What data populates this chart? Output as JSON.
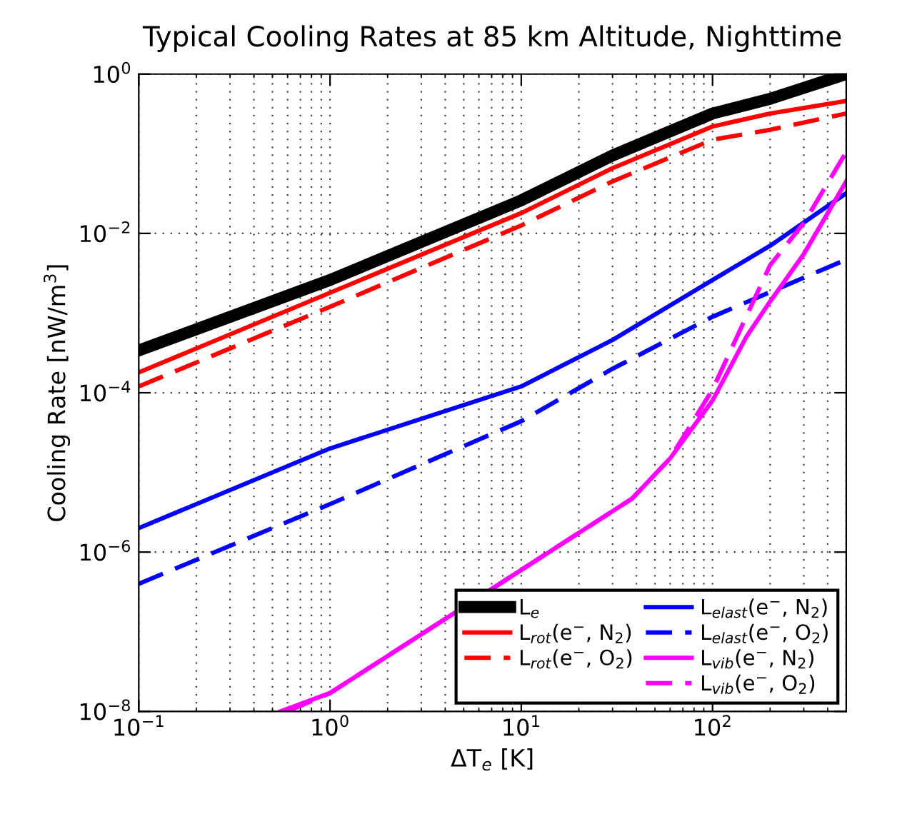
{
  "chart_data": {
    "type": "line",
    "title": "Typical Cooling Rates at 85 km Altitude, Nighttime",
    "xlabel": "ΔT$_{e}$ [K]",
    "ylabel": "Cooling Rate [nW/m$^{3}$]",
    "log": "xy",
    "grid": true,
    "legend": "bottom right",
    "xlim": [
      0.1,
      500
    ],
    "ylim": [
      1e-08,
      1
    ],
    "xticks": [
      {
        "value": 0.1,
        "label": "10$^{−1}$"
      },
      {
        "value": 1,
        "label": "10$^{0}$"
      },
      {
        "value": 10,
        "label": "10$^{1}$"
      },
      {
        "value": 100,
        "label": "10$^{2}$"
      }
    ],
    "yticks": [
      {
        "value": 1e-08,
        "label": "10$^{−8}$"
      },
      {
        "value": 1e-06,
        "label": "10$^{−6}$"
      },
      {
        "value": 0.0001,
        "label": "10$^{−4}$"
      },
      {
        "value": 0.01,
        "label": "10$^{−2}$"
      },
      {
        "value": 1,
        "label": "10$^{0}$"
      }
    ],
    "series": [
      {
        "name": "L$_{e}$",
        "color": "#000000",
        "line_style": "solid",
        "x": [
          0.1,
          1,
          10,
          30,
          100,
          200,
          500
        ],
        "values": [
          0.00034,
          0.0026,
          0.026,
          0.095,
          0.32,
          0.49,
          1.0
        ]
      },
      {
        "name": "L$_{rot}$(e$^{−}$, N$_{2}$)",
        "color": "#ff0000",
        "line_style": "solid",
        "x": [
          0.1,
          1,
          10,
          30,
          100,
          200,
          500
        ],
        "values": [
          0.00018,
          0.0018,
          0.018,
          0.066,
          0.22,
          0.32,
          0.46
        ]
      },
      {
        "name": "L$_{rot}$(e$^{−}$, O$_{2}$)",
        "color": "#ff0000",
        "line_style": "dashed",
        "x": [
          0.1,
          1,
          10,
          30,
          100,
          200,
          500
        ],
        "values": [
          0.00012,
          0.0012,
          0.0126,
          0.045,
          0.15,
          0.2,
          0.32
        ]
      },
      {
        "name": "L$_{elast}$(e$^{−}$, N$_{2}$)",
        "color": "#0000ff",
        "line_style": "solid",
        "x": [
          0.1,
          1,
          10,
          30,
          100,
          200,
          500
        ],
        "values": [
          2e-06,
          2e-05,
          0.00012,
          0.00046,
          0.0026,
          0.007,
          0.032
        ]
      },
      {
        "name": "L$_{elast}$(e$^{−}$, O$_{2}$)",
        "color": "#0000ff",
        "line_style": "dashed",
        "x": [
          0.1,
          1,
          10,
          30,
          100,
          500
        ],
        "values": [
          4e-07,
          4e-06,
          4.4e-05,
          0.0002,
          0.0009,
          0.0047
        ]
      },
      {
        "name": "L$_{vib}$(e$^{−}$, N$_{2}$)",
        "color": "#ff00ff",
        "line_style": "solid",
        "x": [
          0.55,
          1,
          38,
          60,
          100,
          150,
          200,
          300,
          500
        ],
        "values": [
          1e-08,
          1.7e-08,
          4.7e-06,
          1.5e-05,
          8e-05,
          0.0005,
          0.0014,
          0.0055,
          0.045
        ]
      },
      {
        "name": "L$_{vib}$(e$^{−}$, O$_{2}$)",
        "color": "#ff00ff",
        "line_style": "dashed",
        "x": [
          0.6,
          1,
          38,
          60,
          100,
          150,
          200,
          300,
          500
        ],
        "values": [
          1e-08,
          1.7e-08,
          4.7e-06,
          1.5e-05,
          0.00011,
          0.0009,
          0.004,
          0.0135,
          0.105
        ]
      }
    ]
  }
}
